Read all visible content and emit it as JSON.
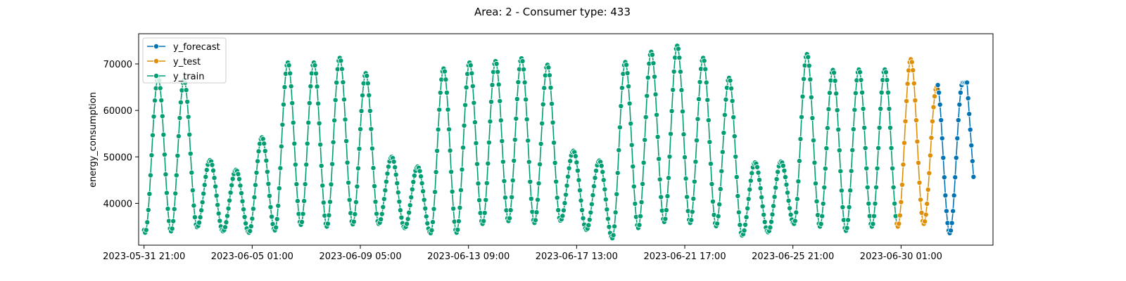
{
  "chart_data": {
    "type": "line",
    "title": "Area: 2 - Consumer type: 433",
    "xlabel": "",
    "ylabel": "energy_consumption",
    "x_axis": {
      "type": "datetime",
      "range": [
        "2023-05-31 16:00",
        "2023-07-03 14:00"
      ],
      "ticks": [
        "2023-05-31 21:00",
        "2023-06-05 01:00",
        "2023-06-09 05:00",
        "2023-06-13 09:00",
        "2023-06-17 13:00",
        "2023-06-21 17:00",
        "2023-06-25 21:00",
        "2023-06-30 01:00"
      ]
    },
    "ylim": [
      31000,
      76500
    ],
    "y_ticks": [
      40000,
      50000,
      60000,
      70000
    ],
    "grid": false,
    "legend_position": "top-left",
    "legend": [
      "y_forecast",
      "y_test",
      "y_train"
    ],
    "daily_peak_hour": 10,
    "daily_trough_hour": 22,
    "series": [
      {
        "name": "y_train",
        "color": "#029e73",
        "start": "2023-05-31 21:00",
        "end": "2023-06-29 21:00",
        "peaks": [
          67000,
          66500,
          49300,
          47200,
          54200,
          70300,
          70300,
          71300,
          68000,
          50000,
          47900,
          69000,
          70300,
          70600,
          71200,
          69800,
          51300,
          49200,
          70400,
          72600,
          73900,
          71300,
          67000,
          48800,
          49000,
          72100,
          68700,
          68800
        ],
        "troughs": [
          33700,
          34000,
          34900,
          34000,
          33700,
          34200,
          35400,
          35000,
          35500,
          35600,
          34700,
          33600,
          33700,
          35600,
          36200,
          35800,
          36300,
          34300,
          32500,
          34700,
          36000,
          35800,
          35100,
          33100,
          33800,
          35600,
          35000,
          34100,
          35000
        ]
      },
      {
        "name": "y_test",
        "color": "#de8f05",
        "start": "2023-06-29 21:00",
        "end": "2023-07-01 11:00",
        "peaks": [
          71000,
          65000
        ],
        "troughs": [
          35000,
          35600
        ]
      },
      {
        "name": "y_forecast",
        "color": "#0173b2",
        "start": "2023-07-01 11:00",
        "end": "2023-07-02 20:00",
        "peaks": [
          66000
        ],
        "troughs": [
          33600
        ],
        "final_value": 45700
      }
    ]
  }
}
